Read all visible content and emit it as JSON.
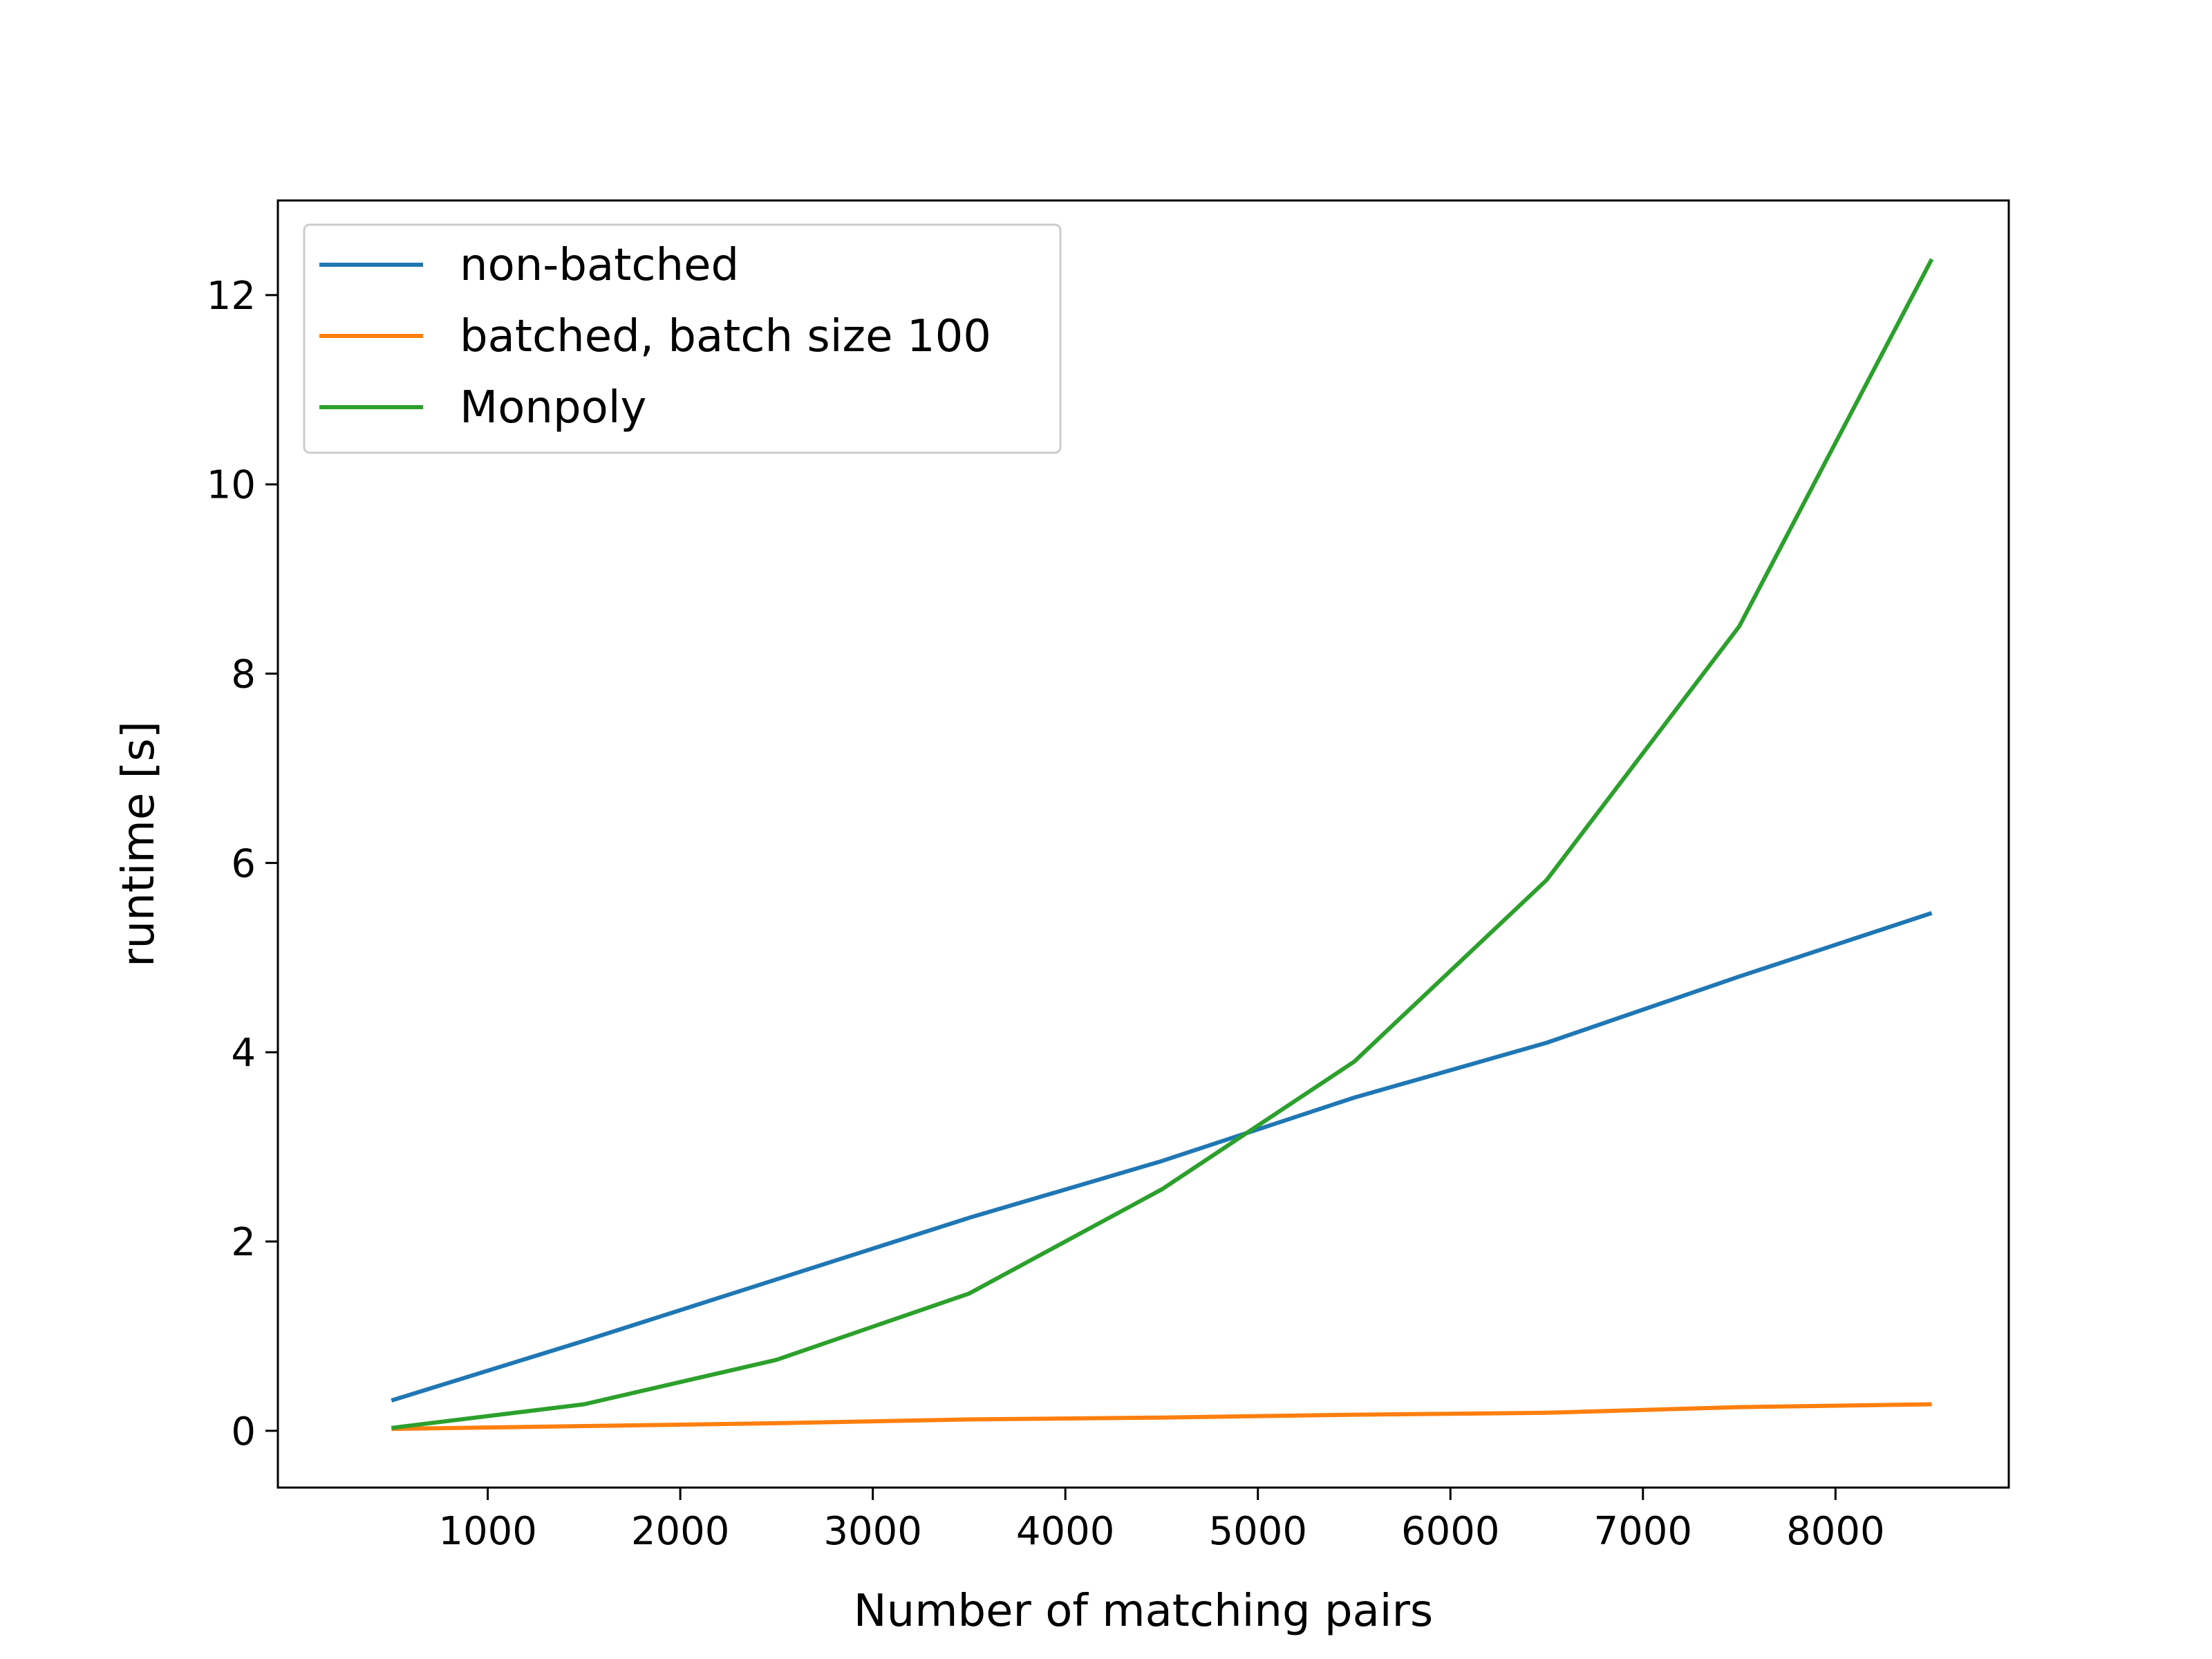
{
  "chart_data": {
    "type": "line",
    "title": "",
    "xlabel": "Number of matching pairs",
    "ylabel": "runtime [s]",
    "xlim": [
      -90,
      8900
    ],
    "ylim": [
      -0.6,
      13.0
    ],
    "xticks": [
      1000,
      2000,
      3000,
      4000,
      5000,
      6000,
      7000,
      8000
    ],
    "yticks": [
      0,
      2,
      4,
      6,
      8,
      10,
      12
    ],
    "grid": false,
    "legend_position": "top-left",
    "x": [
      500,
      1500,
      2500,
      3500,
      4500,
      5500,
      6500,
      7500,
      8500
    ],
    "series": [
      {
        "name": "non-batched",
        "color": "#1f77b4",
        "values": [
          0.32,
          0.95,
          1.6,
          2.25,
          2.85,
          3.52,
          4.1,
          4.8,
          5.47
        ]
      },
      {
        "name": "batched, batch size 100",
        "color": "#ff7f0e",
        "values": [
          0.02,
          0.05,
          0.08,
          0.12,
          0.14,
          0.17,
          0.19,
          0.25,
          0.28
        ]
      },
      {
        "name": "Monpoly",
        "color": "#2ca02c",
        "values": [
          0.03,
          0.28,
          0.75,
          1.45,
          2.55,
          3.9,
          5.82,
          8.5,
          12.38
        ]
      }
    ]
  }
}
